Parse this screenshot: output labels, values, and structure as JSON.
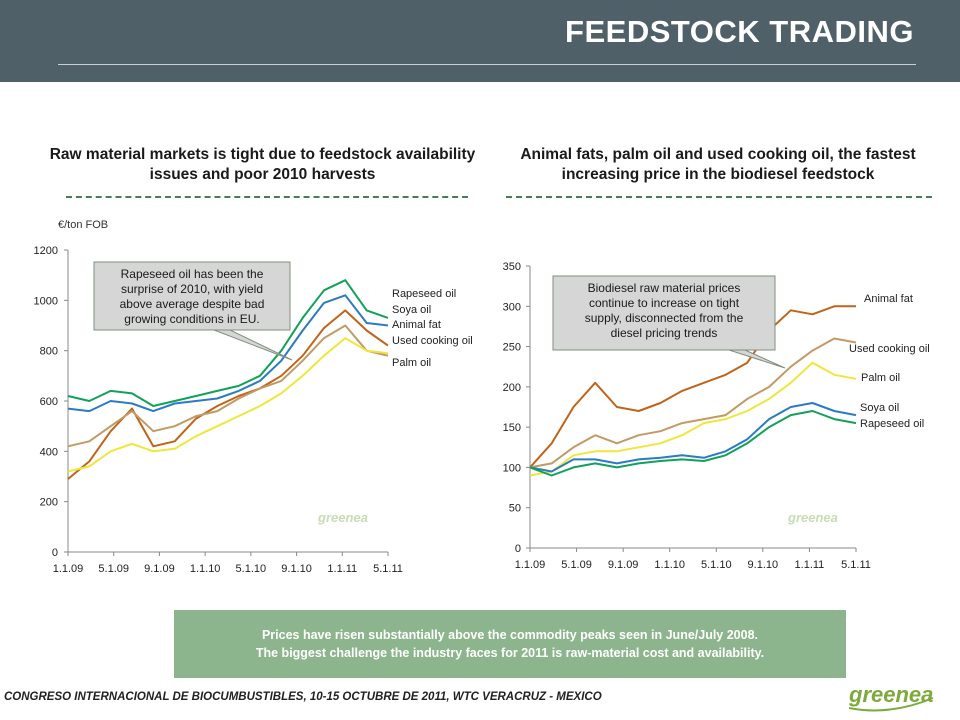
{
  "header": {
    "title": "FEEDSTOCK TRADING"
  },
  "subtitles": {
    "left": "Raw material markets is tight due to feedstock availability issues and poor 2010 harvests",
    "right": "Animal fats, palm oil and used cooking oil, the fastest increasing price in the biodiesel feedstock"
  },
  "conclusion": {
    "line1": "Prices have risen substantially above the commodity peaks seen in June/July 2008.",
    "line2": "The biggest challenge the industry faces for 2011 is raw-material cost and availability."
  },
  "footer": {
    "text": "CONGRESO INTERNACIONAL DE BIOCUMBUSTIBLES, 10-15 OCTUBRE DE 2011, WTC VERACRUZ - MEXICO"
  },
  "logo": {
    "text": "greenea"
  },
  "colors": {
    "rapeseed": "#13a05a",
    "soya": "#2b7bc2",
    "animal_fat": "#c0641a",
    "used_cooking": "#c29a64",
    "palm": "#f0e63a",
    "header": "#4f6069",
    "box": "#8db58d"
  },
  "chart_data": [
    {
      "type": "line",
      "ylabel": "€/ton FOB",
      "ylim": [
        0,
        1200
      ],
      "yticks": [
        0,
        200,
        400,
        600,
        800,
        1000,
        1200
      ],
      "xticks": [
        "1.1.09",
        "5.1.09",
        "9.1.09",
        "1.1.10",
        "5.1.10",
        "9.1.10",
        "1.1.11",
        "5.1.11"
      ],
      "x": [
        "1.1.09",
        "3.1.09",
        "5.1.09",
        "7.1.09",
        "9.1.09",
        "11.1.09",
        "1.1.10",
        "3.1.10",
        "5.1.10",
        "7.1.10",
        "9.1.10",
        "11.1.10",
        "1.1.11",
        "3.1.11",
        "5.1.11",
        "6.1.11"
      ],
      "annotation": "Rapeseed oil has been the surprise of 2010, with yield above average despite bad growing conditions in EU.",
      "watermark": "greenea",
      "series": [
        {
          "name": "Rapeseed oil",
          "key": "rapeseed",
          "values": [
            620,
            600,
            640,
            630,
            580,
            600,
            620,
            640,
            660,
            700,
            800,
            930,
            1040,
            1080,
            960,
            930
          ]
        },
        {
          "name": "Soya oil",
          "key": "soya",
          "values": [
            570,
            560,
            600,
            590,
            560,
            590,
            600,
            610,
            640,
            680,
            760,
            880,
            990,
            1020,
            910,
            900
          ]
        },
        {
          "name": "Animal fat",
          "key": "animal_fat",
          "values": [
            290,
            360,
            480,
            570,
            420,
            440,
            530,
            580,
            620,
            650,
            700,
            780,
            890,
            960,
            880,
            820
          ]
        },
        {
          "name": "Used cooking oil",
          "key": "used_cooking",
          "values": [
            420,
            440,
            500,
            560,
            480,
            500,
            540,
            560,
            610,
            650,
            680,
            760,
            850,
            900,
            800,
            780
          ]
        },
        {
          "name": "Palm oil",
          "key": "palm",
          "values": [
            320,
            340,
            400,
            430,
            400,
            410,
            460,
            500,
            540,
            580,
            630,
            700,
            780,
            850,
            800,
            790
          ]
        }
      ]
    },
    {
      "type": "line",
      "ylabel": "",
      "ylim": [
        0,
        350
      ],
      "yticks": [
        0,
        50,
        100,
        150,
        200,
        250,
        300,
        350
      ],
      "xticks": [
        "1.1.09",
        "5.1.09",
        "9.1.09",
        "1.1.10",
        "5.1.10",
        "9.1.10",
        "1.1.11",
        "5.1.11"
      ],
      "x": [
        "1.1.09",
        "3.1.09",
        "5.1.09",
        "7.1.09",
        "9.1.09",
        "11.1.09",
        "1.1.10",
        "3.1.10",
        "5.1.10",
        "7.1.10",
        "9.1.10",
        "11.1.10",
        "1.1.11",
        "3.1.11",
        "5.1.11",
        "6.1.11"
      ],
      "annotation": "Biodiesel raw material prices continue to increase on tight supply, disconnected from the diesel pricing trends",
      "watermark": "greenea",
      "series": [
        {
          "name": "Animal fat",
          "key": "animal_fat",
          "values": [
            100,
            130,
            175,
            205,
            175,
            170,
            180,
            195,
            205,
            215,
            230,
            270,
            295,
            290,
            300,
            300
          ]
        },
        {
          "name": "Used cooking oil",
          "key": "used_cooking",
          "values": [
            100,
            105,
            125,
            140,
            130,
            140,
            145,
            155,
            160,
            165,
            185,
            200,
            225,
            245,
            260,
            255
          ]
        },
        {
          "name": "Palm oil",
          "key": "palm",
          "values": [
            90,
            95,
            115,
            120,
            120,
            125,
            130,
            140,
            155,
            160,
            170,
            185,
            205,
            230,
            215,
            210
          ]
        },
        {
          "name": "Soya oil",
          "key": "soya",
          "values": [
            100,
            95,
            110,
            110,
            105,
            110,
            112,
            115,
            112,
            120,
            135,
            160,
            175,
            180,
            170,
            165
          ]
        },
        {
          "name": "Rapeseed oil",
          "key": "rapeseed",
          "values": [
            100,
            90,
            100,
            105,
            100,
            105,
            108,
            110,
            108,
            115,
            130,
            150,
            165,
            170,
            160,
            155
          ]
        }
      ]
    }
  ]
}
